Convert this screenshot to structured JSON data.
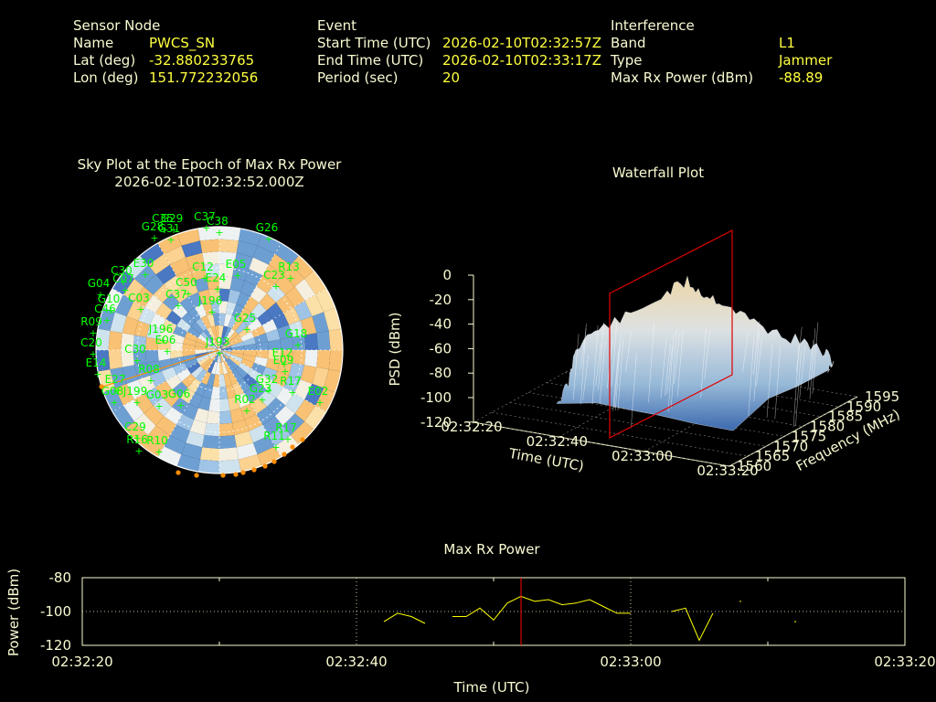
{
  "header": {
    "sensor": {
      "section": "Sensor Node",
      "name_label": "Name",
      "name_value": "PWCS_SN",
      "lat_label": "Lat (deg)",
      "lat_value": "-32.880233765",
      "lon_label": "Lon (deg)",
      "lon_value": "151.772232056"
    },
    "event": {
      "section": "Event",
      "start_label": "Start Time (UTC)",
      "start_value": "2026-02-10T02:32:57Z",
      "end_label": "End Time (UTC)",
      "end_value": "2026-02-10T02:33:17Z",
      "period_label": "Period (sec)",
      "period_value": "20"
    },
    "interference": {
      "section": "Interference",
      "band_label": "Band",
      "band_value": "L1",
      "type_label": "Type",
      "type_value": "Jammer",
      "power_label": "Max Rx Power (dBm)",
      "power_value": "-88.89"
    }
  },
  "skyplot": {
    "title": "Sky Plot at the Epoch of Max Rx Power",
    "epoch": "2026-02-10T02:32:52.000Z",
    "satellites": [
      "G29",
      "C35",
      "G28",
      "C37",
      "C38",
      "G26",
      "G31",
      "C30",
      "E30",
      "C12",
      "E05",
      "C23",
      "R13",
      "G04",
      "C07",
      "C37",
      "G10",
      "C50",
      "E24",
      "C03",
      "J196",
      "C46",
      "G25",
      "R09",
      "J196",
      "C20",
      "C30",
      "E06",
      "J193",
      "G18",
      "E12",
      "E14",
      "E09",
      "G08",
      "G23",
      "E27",
      "R08",
      "J199",
      "G03",
      "G06",
      "R02",
      "G32",
      "R17",
      "R16",
      "C29",
      "R10",
      "R11",
      "R17",
      "E02"
    ],
    "colors": {
      "sat": "#00ff00",
      "edge_marker": "#ff8c00"
    }
  },
  "waterfall": {
    "title": "Waterfall Plot",
    "zlabel": "PSD (dBm)",
    "zticks": [
      "0",
      "-20",
      "-40",
      "-60",
      "-80",
      "-100",
      "-120"
    ],
    "xlabel": "Time (UTC)",
    "xticks": [
      "02:32:20",
      "02:32:40",
      "02:33:00",
      "02:33:20"
    ],
    "ylabel": "Frequency (MHz)",
    "yticks": [
      "1560",
      "1565",
      "1570",
      "1575",
      "1580",
      "1585",
      "1590",
      "1595"
    ]
  },
  "chart_data": {
    "type": "line",
    "title": "Max Rx Power",
    "xlabel": "Time (UTC)",
    "ylabel": "Power (dBm)",
    "x_tick_labels": [
      "02:32:20",
      "02:32:40",
      "02:33:00",
      "02:33:20"
    ],
    "y_tick_labels": [
      "-80",
      "-100",
      "-120"
    ],
    "ylim": [
      -120,
      -80
    ],
    "xlim_seconds": [
      0,
      60
    ],
    "marker_time_seconds": 32,
    "series": [
      {
        "points": [
          [
            22,
            -106
          ],
          [
            23,
            -101
          ],
          [
            24,
            -103
          ],
          [
            25,
            -107
          ],
          null,
          [
            27,
            -103
          ],
          [
            28,
            -103
          ],
          [
            29,
            -98
          ],
          [
            30,
            -105
          ],
          [
            31,
            -95
          ],
          [
            32,
            -91
          ],
          [
            33,
            -94
          ],
          [
            34,
            -93
          ],
          [
            35,
            -96
          ],
          [
            36,
            -95
          ],
          [
            37,
            -93
          ],
          [
            38,
            -97
          ],
          [
            39,
            -101
          ],
          [
            40,
            -101
          ],
          null,
          [
            43,
            -100
          ],
          [
            44,
            -98
          ],
          [
            45,
            -117
          ],
          [
            46,
            -101
          ],
          null,
          [
            48,
            -94
          ],
          null,
          [
            52,
            -106
          ]
        ]
      }
    ],
    "grid": true,
    "colors": {
      "line": "#ffff00",
      "marker": "#ff0000",
      "frame": "#fafad2"
    }
  }
}
